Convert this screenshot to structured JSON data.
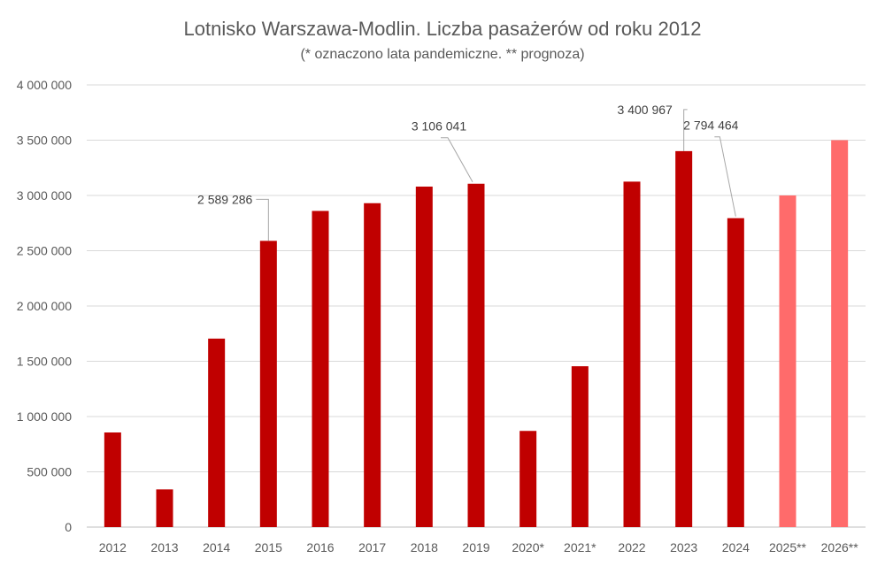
{
  "chart_data": {
    "type": "bar",
    "title": "Lotnisko Warszawa-Modlin. Liczba pasażerów od roku 2012",
    "subtitle": "(* oznaczono lata pandemiczne. ** prognoza)",
    "categories": [
      "2012",
      "2013",
      "2014",
      "2015",
      "2016",
      "2017",
      "2018",
      "2019",
      "2020*",
      "2021*",
      "2022",
      "2023",
      "2024",
      "2025**",
      "2026**"
    ],
    "values": [
      856000,
      341000,
      1705000,
      2589286,
      2860000,
      2930000,
      3080000,
      3106041,
      870000,
      1455000,
      3125000,
      3400967,
      2794464,
      3000000,
      3500000
    ],
    "forecast": [
      false,
      false,
      false,
      false,
      false,
      false,
      false,
      false,
      false,
      false,
      false,
      false,
      false,
      true,
      true
    ],
    "data_labels": [
      {
        "category": "2015",
        "text": "2 589 286"
      },
      {
        "category": "2019",
        "text": "3 106 041"
      },
      {
        "category": "2023",
        "text": "3 400 967"
      },
      {
        "category": "2024",
        "text": "2 794 464"
      }
    ],
    "ylim": [
      0,
      4000000
    ],
    "yticks": [
      0,
      500000,
      1000000,
      1500000,
      2000000,
      2500000,
      3000000,
      3500000,
      4000000
    ],
    "ytick_labels": [
      "0",
      "500 000",
      "1 000 000",
      "1 500 000",
      "2 000 000",
      "2 500 000",
      "3 000 000",
      "3 500 000",
      "4 000 000"
    ],
    "grid": true,
    "legend": "none",
    "colors": {
      "actual": "#c00000",
      "forecast": "#ff6b6b",
      "grid": "#d9d9d9",
      "text": "#595959"
    }
  }
}
